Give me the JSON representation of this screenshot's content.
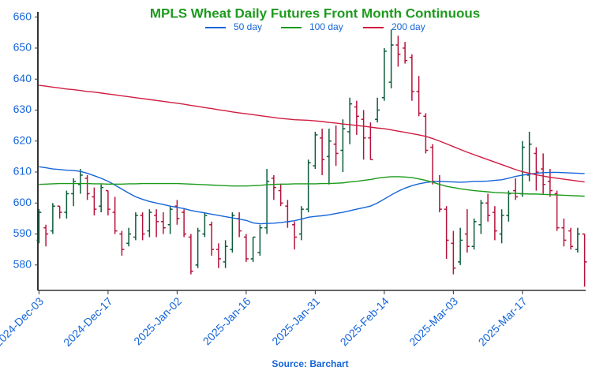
{
  "chart_data": {
    "type": "ohlc",
    "title": "MPLS Wheat Daily Futures Front Month Continuous",
    "source": "Source: Barchart",
    "categories": [
      "2024-Dec-03",
      null,
      null,
      null,
      null,
      null,
      null,
      null,
      null,
      null,
      "2024-Dec-17",
      null,
      null,
      null,
      null,
      null,
      null,
      null,
      null,
      null,
      "2025-Jan-02",
      null,
      null,
      null,
      null,
      null,
      null,
      null,
      null,
      null,
      "2025-Jan-16",
      null,
      null,
      null,
      null,
      null,
      null,
      null,
      null,
      null,
      "2025-Jan-31",
      null,
      null,
      null,
      null,
      null,
      null,
      null,
      null,
      null,
      "2025-Feb-14",
      null,
      null,
      null,
      null,
      null,
      null,
      null,
      null,
      null,
      "2025-Mar-03",
      null,
      null,
      null,
      null,
      null,
      null,
      null,
      null,
      null,
      "2025-Mar-17",
      null,
      null,
      null,
      null,
      null,
      null,
      null,
      null,
      null
    ],
    "open": [
      588,
      592,
      591,
      599,
      597,
      603,
      606,
      608,
      602,
      599,
      604,
      597,
      590,
      587,
      589,
      596,
      591,
      596,
      594,
      593,
      599,
      597,
      589,
      580,
      590,
      593,
      585,
      581,
      585,
      595,
      589,
      582,
      584,
      592,
      608,
      604,
      599,
      593,
      590,
      598,
      612,
      621,
      615,
      619,
      617,
      623,
      631,
      627,
      621,
      627,
      634,
      639,
      651,
      650,
      647,
      636,
      628,
      618,
      607,
      598,
      587,
      581,
      590,
      586,
      593,
      600,
      597,
      590,
      596,
      604,
      603,
      609,
      616,
      611,
      607,
      603,
      592,
      591,
      585,
      590
    ],
    "high": [
      598,
      593,
      600,
      599,
      604,
      608,
      611,
      609,
      605,
      606,
      604,
      602,
      591,
      592,
      597,
      597,
      598,
      598,
      597,
      599,
      601,
      598,
      590,
      592,
      597,
      594,
      587,
      588,
      597,
      597,
      590,
      589,
      593,
      611,
      609,
      606,
      601,
      594,
      599,
      614,
      623,
      624,
      624,
      625,
      627,
      634,
      633,
      630,
      626,
      634,
      650,
      656,
      654,
      652,
      648,
      641,
      629,
      619,
      609,
      599,
      591,
      592,
      598,
      595,
      601,
      603,
      599,
      598,
      604,
      608,
      620,
      623,
      618,
      616,
      611,
      604,
      595,
      592,
      592,
      590
    ],
    "low": [
      587,
      586,
      590,
      595,
      595,
      599,
      603,
      601,
      596,
      597,
      596,
      590,
      583,
      586,
      588,
      588,
      589,
      589,
      590,
      590,
      593,
      589,
      577,
      579,
      589,
      583,
      579,
      579,
      584,
      589,
      581,
      581,
      583,
      590,
      601,
      599,
      592,
      585,
      588,
      597,
      611,
      609,
      606,
      612,
      610,
      619,
      622,
      614,
      614,
      626,
      633,
      637,
      644,
      645,
      633,
      628,
      616,
      606,
      597,
      582,
      577,
      580,
      584,
      585,
      590,
      594,
      588,
      587,
      594,
      601,
      602,
      607,
      604,
      603,
      602,
      591,
      586,
      585,
      584,
      573
    ],
    "close": [
      597,
      590,
      599,
      597,
      603,
      607,
      609,
      603,
      598,
      605,
      598,
      591,
      585,
      590,
      596,
      590,
      597,
      594,
      592,
      598,
      595,
      590,
      578,
      591,
      596,
      585,
      582,
      586,
      596,
      591,
      582,
      589,
      592,
      607,
      605,
      600,
      594,
      589,
      598,
      613,
      622,
      614,
      620,
      616,
      624,
      632,
      628,
      621,
      614,
      630,
      649,
      651,
      648,
      646,
      636,
      629,
      617,
      607,
      598,
      588,
      579,
      588,
      586,
      594,
      600,
      596,
      591,
      596,
      603,
      602,
      618,
      619,
      610,
      606,
      604,
      592,
      588,
      586,
      590,
      581
    ],
    "up_color": "#0b5c3a",
    "down_color": "#b5123a",
    "series": [
      {
        "name": "50 day",
        "color": "#1565d8",
        "values": [
          611.7,
          611.4,
          611,
          610.8,
          610.6,
          610.5,
          610.2,
          609.6,
          608.8,
          608,
          607,
          605.8,
          604.5,
          603.2,
          602,
          601.2,
          600.5,
          600,
          599.5,
          599,
          598.6,
          598.2,
          597.6,
          597.2,
          596.8,
          596.4,
          596,
          595.6,
          595.2,
          594.8,
          594.4,
          593.6,
          593.3,
          593.4,
          593.5,
          593.7,
          594,
          594.3,
          594.8,
          595.4,
          595.7,
          595.9,
          596.2,
          596.6,
          597,
          597.5,
          598,
          598.5,
          599,
          600,
          601.3,
          602.6,
          603.8,
          604.8,
          605.6,
          606.2,
          606.6,
          606.9,
          607,
          606.9,
          606.8,
          606.7,
          606.8,
          607,
          607,
          607.1,
          607.3,
          607.5,
          608,
          608.6,
          609,
          609.3,
          609.6,
          609.8,
          609.9,
          609.9,
          609.8,
          609.7,
          609.6,
          609.5
        ]
      },
      {
        "name": "100 day",
        "color": "#1c9a1c",
        "values": [
          606,
          606.1,
          606.2,
          606.3,
          606.3,
          606.3,
          606.3,
          606.3,
          606.2,
          606.2,
          606.1,
          606.1,
          606.1,
          606.2,
          606.2,
          606.3,
          606.3,
          606.3,
          606.3,
          606.3,
          606.3,
          606.2,
          606.1,
          606,
          605.9,
          605.8,
          605.7,
          605.6,
          605.5,
          605.5,
          605.5,
          605.6,
          605.7,
          605.9,
          606,
          606.1,
          606.1,
          606.2,
          606.2,
          606.2,
          606.2,
          606.3,
          606.3,
          606.4,
          606.5,
          606.8,
          607,
          607.3,
          607.6,
          608,
          608.3,
          608.5,
          608.5,
          608.4,
          608.2,
          607.8,
          607.3,
          606.7,
          606,
          605.4,
          605,
          604.6,
          604.3,
          604,
          603.8,
          603.6,
          603.4,
          603.3,
          603.2,
          603.1,
          603,
          602.9,
          602.9,
          602.8,
          602.7,
          602.6,
          602.5,
          602.4,
          602.3,
          602.2
        ]
      },
      {
        "name": "200 day",
        "color": "#d01c40",
        "values": [
          638,
          637.7,
          637.4,
          637.1,
          636.8,
          636.6,
          636.3,
          636,
          635.8,
          635.5,
          635.2,
          634.9,
          634.6,
          634.3,
          634,
          633.7,
          633.4,
          633.1,
          632.8,
          632.5,
          632.2,
          631.9,
          631.5,
          631.2,
          630.8,
          630.5,
          630.1,
          629.8,
          629.4,
          629.1,
          628.8,
          628.5,
          628.2,
          627.9,
          627.6,
          627.3,
          627.1,
          626.9,
          626.8,
          626.7,
          626.5,
          626.3,
          626,
          625.8,
          625.5,
          625.3,
          625,
          624.8,
          624.5,
          624.2,
          624,
          623.6,
          623.2,
          622.8,
          622.4,
          622,
          621.5,
          620.8,
          620,
          619.1,
          618.2,
          617.3,
          616.4,
          615.6,
          614.8,
          614,
          613.2,
          612.4,
          611.6,
          610.8,
          610.1,
          609.6,
          609.1,
          608.7,
          608.3,
          608,
          607.7,
          607.4,
          607.1,
          606.8
        ]
      }
    ],
    "ylim": [
      571.8,
      661.7
    ],
    "yticks": [
      580,
      590,
      600,
      610,
      620,
      630,
      640,
      650,
      660
    ]
  }
}
